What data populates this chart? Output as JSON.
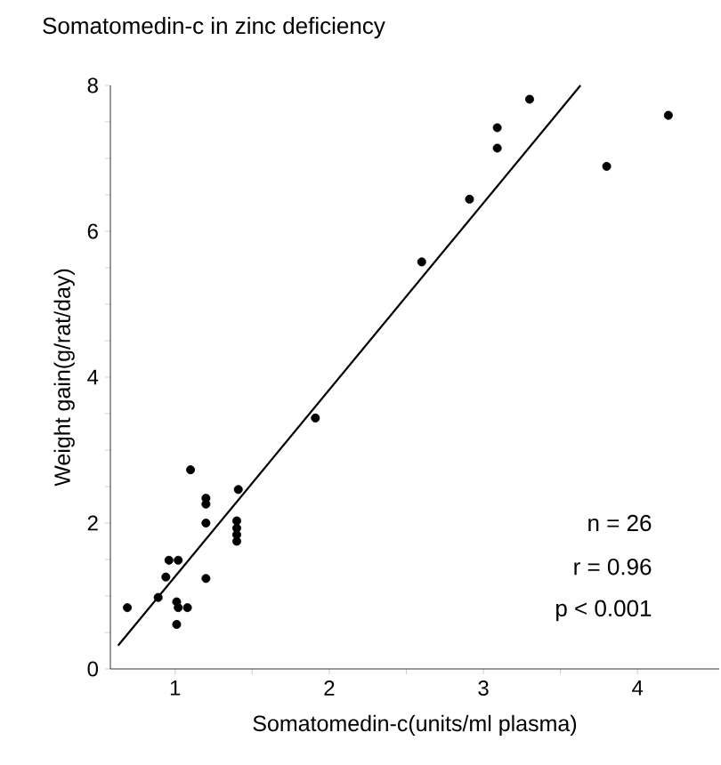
{
  "chart_data": {
    "type": "scatter",
    "title": "Somatomedin-c in zinc deficiency",
    "xlabel": "Somatomedin-c(units/ml plasma)",
    "ylabel": "Weight gain(g/rat/day)",
    "xlim": [
      0.58,
      4.53
    ],
    "ylim": [
      0,
      8
    ],
    "xticks": [
      1,
      {
        "value": 1.5,
        "label": null
      },
      2,
      {
        "value": 2.5,
        "label": null
      },
      3,
      {
        "value": 3.5,
        "label": null
      },
      4
    ],
    "yticks": [
      0,
      {
        "value": 0.5,
        "label": null
      },
      {
        "value": 1,
        "label": null
      },
      {
        "value": 1.5,
        "label": null
      },
      2,
      {
        "value": 2.5,
        "label": null
      },
      {
        "value": 3,
        "label": null
      },
      {
        "value": 3.5,
        "label": null
      },
      4,
      {
        "value": 4.5,
        "label": null
      },
      {
        "value": 5,
        "label": null
      },
      {
        "value": 5.5,
        "label": null
      },
      6,
      {
        "value": 6.5,
        "label": null
      },
      {
        "value": 7,
        "label": null
      },
      {
        "value": 7.5,
        "label": null
      },
      8
    ],
    "series": [
      {
        "color": "#000000",
        "marker": "circle",
        "x": [
          0.69,
          0.89,
          0.94,
          0.96,
          1.02,
          1.01,
          1.02,
          1.08,
          1.01,
          1.1,
          1.2,
          1.2,
          1.2,
          1.2,
          1.41,
          1.4,
          1.4,
          1.4,
          1.4,
          1.91,
          2.6,
          2.91,
          3.09,
          3.09,
          3.3,
          3.8,
          4.2
        ],
        "values": [
          0.84,
          0.98,
          1.26,
          1.49,
          1.49,
          0.92,
          0.84,
          0.84,
          0.61,
          2.73,
          2.34,
          2.26,
          2.0,
          1.24,
          2.46,
          2.03,
          1.93,
          1.84,
          1.75,
          3.44,
          5.58,
          6.44,
          7.14,
          7.42,
          7.81,
          6.89,
          7.59
        ]
      },
      {
        "type": "line",
        "color": "#000000",
        "marker": "none",
        "line_style": "solid",
        "x": [
          0.63,
          3.63
        ],
        "values": [
          0.32,
          8.0
        ]
      }
    ],
    "annotations": [
      "n = 26",
      "r = 0.96",
      "p < 0.001"
    ]
  }
}
